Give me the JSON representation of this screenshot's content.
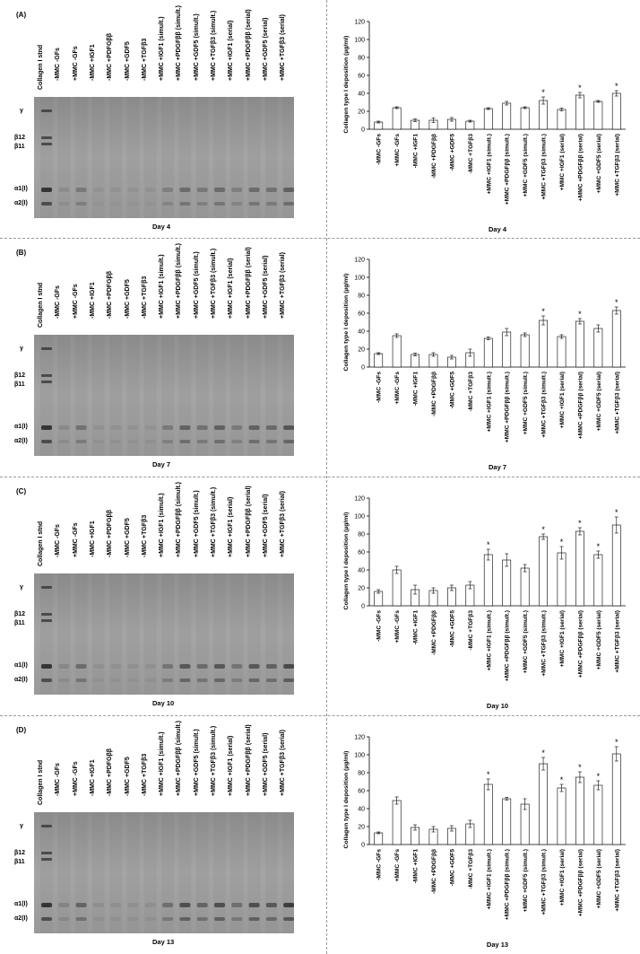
{
  "lanes": [
    "Collagen I stnd",
    "-MMC -GFs",
    "+MMC -GFs",
    "-MMC +IGF1",
    "-MMC +PDFGββ",
    "-MMC +GDF5",
    "-MMC +TGFβ3",
    "+MMC +IGF1 (simult.)",
    "+MMC +PDGFββ (simult.)",
    "+MMC +GDF5 (simult.)",
    "+MMC +TGFβ3 (simult.)",
    "+MMC +IGF1 (serial)",
    "+MMC +PDGFββ (serial)",
    "+MMC +GDF5 (serial)",
    "+MMC +TGFβ3 (serial)"
  ],
  "lanes_B": [
    "Collagen I stnd",
    "-MMC -GFs",
    "+MMC -GFs",
    "-MMC +IGF1",
    "-MMC +PDFGββ",
    "-MMC +GDF5",
    "-MMC +TGFβ3",
    "+MMC +IGF1 (simult.)",
    "+MMC +PDGFββ (simult.)",
    "+MMC +GDF5 (simult.)",
    "+MMC +TGFβ3 (simult.)",
    "+MMC +IGF1 (serial)",
    "+MMC +PDGFββ (serial)",
    "+MMC +GDF5 (serial)",
    "+MMC +TGFβ3 (serial)"
  ],
  "band_labels": [
    "γ",
    "β12",
    "β11",
    "α1(I)",
    "α2(I)"
  ],
  "panels": [
    {
      "label": "(A)",
      "day": "Day 4"
    },
    {
      "label": "(B)",
      "day": "Day 7"
    },
    {
      "label": "(C)",
      "day": "Day 10"
    },
    {
      "label": "(D)",
      "day": "Day 13"
    }
  ],
  "colors": {
    "bar_fill": "#ffffff",
    "bar_stroke": "#000000",
    "gel_bg": "#9a9a9a",
    "band": "#2a2a2a"
  },
  "chart_data": [
    {
      "type": "bar",
      "title": "",
      "xlabel": "Day 4",
      "ylabel": "Collagen type I deposition (µg/ml)",
      "ylim": [
        0,
        120
      ],
      "yticks": [
        0,
        20,
        40,
        60,
        80,
        100,
        120
      ],
      "grid": false,
      "categories": [
        "-MMC -GFs",
        "+MMC -GFs",
        "-MMC +IGF1",
        "-MMC +PDGFββ",
        "-MMC +GDF5",
        "-MMC +TGFβ3",
        "+MMC +IGF1 (simult.)",
        "+MMC +PDGFββ (simult.)",
        "+MMC +GDF5 (simult.)",
        "+MMC +TGFβ3 (simult.)",
        "+MMC +IGF1 (serial)",
        "+MMC +PDGFββ (serial)",
        "+MMC +GDF5 (serial)",
        "+MMC +TGFβ3 (serial)"
      ],
      "values": [
        8,
        24,
        10,
        10,
        11,
        9,
        23,
        29,
        24,
        32,
        22,
        38,
        31,
        40
      ],
      "errors": [
        1,
        1,
        1.5,
        2.5,
        2,
        1,
        1,
        2,
        1,
        4,
        1.5,
        3,
        1,
        3
      ],
      "significant": [
        false,
        false,
        false,
        false,
        false,
        false,
        false,
        false,
        false,
        true,
        false,
        true,
        false,
        true
      ],
      "marker": "*"
    },
    {
      "type": "bar",
      "title": "",
      "xlabel": "Day 7",
      "ylabel": "Collagen type I deposition (µg/ml)",
      "ylim": [
        0,
        120
      ],
      "yticks": [
        0,
        20,
        40,
        60,
        80,
        100,
        120
      ],
      "grid": false,
      "categories": [
        "-MMC -GFs",
        "+MMC -GFs",
        "-MMC +IGF1",
        "-MMC +PDGFββ",
        "-MMC +GDF5",
        "-MMC +TGFβ3",
        "+MMC +IGF1 (simult.)",
        "+MMC +PDGFββ (simult.)",
        "+MMC +GDF5 (simult.)",
        "+MMC +TGFβ3 (simult.)",
        "+MMC +IGF1 (serial)",
        "+MMC +PDGFββ (serial)",
        "+MMC +GDF5 (serial)",
        "+MMC +TGFβ3 (serial)"
      ],
      "values": [
        15,
        35,
        14,
        14,
        11,
        16,
        32,
        39,
        36,
        52,
        34,
        51,
        43,
        63
      ],
      "errors": [
        1,
        2,
        1.5,
        2,
        2,
        4,
        1.5,
        4,
        2,
        5,
        2,
        3,
        4,
        4
      ],
      "significant": [
        false,
        false,
        false,
        false,
        false,
        false,
        false,
        false,
        false,
        true,
        false,
        true,
        false,
        true
      ],
      "marker": "*"
    },
    {
      "type": "bar",
      "title": "",
      "xlabel": "Day 10",
      "ylabel": "Collagen type I deposition (µg/ml)",
      "ylim": [
        0,
        120
      ],
      "yticks": [
        0,
        20,
        40,
        60,
        80,
        100,
        120
      ],
      "grid": false,
      "categories": [
        "-MMC -GFs",
        "+MMC -GFs",
        "-MMC +IGF1",
        "-MMC +PDGFββ",
        "-MMC +GDF5",
        "-MMC +TGFβ3",
        "+MMC +IGF1 (simult.)",
        "+MMC +PDGFββ (simult.)",
        "+MMC +GDF5 (simult.)",
        "+MMC +TGFβ3 (simult.)",
        "+MMC +IGF1 (serial)",
        "+MMC +PDGFββ (serial)",
        "+MMC +GDF5 (serial)",
        "+MMC +TGFβ3 (serial)"
      ],
      "values": [
        16,
        40,
        18,
        17,
        20,
        23,
        57,
        51,
        42,
        77,
        59,
        83,
        57,
        90
      ],
      "errors": [
        2,
        4,
        5,
        3,
        3,
        4,
        6,
        7,
        4,
        3,
        7,
        4,
        4,
        9
      ],
      "significant": [
        false,
        false,
        false,
        false,
        false,
        false,
        true,
        false,
        false,
        true,
        true,
        true,
        true,
        true
      ],
      "marker": "*"
    },
    {
      "type": "bar",
      "title": "",
      "xlabel": "Day 13",
      "ylabel": "Collagen type I deposition (µg/ml)",
      "ylim": [
        0,
        120
      ],
      "yticks": [
        0,
        20,
        40,
        60,
        80,
        100,
        120
      ],
      "grid": false,
      "categories": [
        "-MMC -GFs",
        "+MMC -GFs",
        "-MMC +IGF1",
        "-MMC +PDGFββ",
        "-MMC +GDF5",
        "-MMC +TGFβ3",
        "+MMC +IGF1 (simult.)",
        "+MMC +PDGFββ (simult.)",
        "+MMC +GDF5 (simult.)",
        "+MMC +TGFβ3 (simult.)",
        "+MMC +IGF1 (serial)",
        "+MMC +PDGFββ (serial)",
        "+MMC +GDF5 (serial)",
        "+MMC +TGFβ3 (serial)"
      ],
      "values": [
        13,
        49,
        19,
        17,
        18,
        23,
        67,
        51,
        45,
        90,
        63,
        75,
        66,
        101
      ],
      "errors": [
        1,
        4,
        3,
        3,
        3,
        4,
        6,
        1.5,
        6,
        7,
        4,
        6,
        5,
        8
      ],
      "significant": [
        false,
        false,
        false,
        false,
        false,
        false,
        true,
        false,
        false,
        true,
        true,
        true,
        true,
        true
      ],
      "marker": "*"
    }
  ]
}
